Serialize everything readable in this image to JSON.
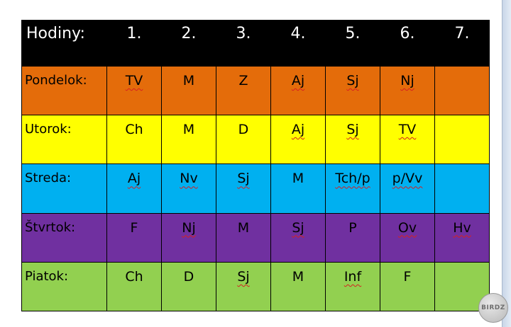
{
  "timetable": {
    "header": {
      "label": "Hodiny:",
      "periods": [
        "1.",
        "2.",
        "3.",
        "4.",
        "5.",
        "6.",
        "7."
      ]
    },
    "days": [
      {
        "name": "Pondelok:",
        "color": "#e46c0a",
        "cells": [
          {
            "text": "TV",
            "spell": true
          },
          {
            "text": "M",
            "spell": false
          },
          {
            "text": "Z",
            "spell": false
          },
          {
            "text": "Aj",
            "spell": true
          },
          {
            "text": "Sj",
            "spell": true
          },
          {
            "text": "Nj",
            "spell": true
          },
          {
            "text": "",
            "spell": false
          }
        ]
      },
      {
        "name": "Utorok:",
        "color": "#ffff00",
        "cells": [
          {
            "text": "Ch",
            "spell": false
          },
          {
            "text": "M",
            "spell": false
          },
          {
            "text": "D",
            "spell": false
          },
          {
            "text": "Aj",
            "spell": true
          },
          {
            "text": "Sj",
            "spell": true
          },
          {
            "text": "TV",
            "spell": true
          },
          {
            "text": "",
            "spell": false
          }
        ]
      },
      {
        "name": "Streda:",
        "color": "#00b0f0",
        "cells": [
          {
            "text": "Aj",
            "spell": true
          },
          {
            "text": "Nv",
            "spell": true
          },
          {
            "text": "Sj",
            "spell": true
          },
          {
            "text": "M",
            "spell": false
          },
          {
            "text": "Tch/p",
            "spell": true
          },
          {
            "text": "p/Vv",
            "spell": true
          },
          {
            "text": "",
            "spell": false
          }
        ]
      },
      {
        "name": "Štvrtok:",
        "color": "#7030a0",
        "cells": [
          {
            "text": "F",
            "spell": false
          },
          {
            "text": "Nj",
            "spell": true
          },
          {
            "text": "M",
            "spell": false
          },
          {
            "text": "Sj",
            "spell": true
          },
          {
            "text": "P",
            "spell": false
          },
          {
            "text": "Ov",
            "spell": true
          },
          {
            "text": "Hv",
            "spell": true
          }
        ]
      },
      {
        "name": "Piatok:",
        "color": "#92d050",
        "cells": [
          {
            "text": "Ch",
            "spell": false
          },
          {
            "text": "D",
            "spell": false
          },
          {
            "text": "Sj",
            "spell": true
          },
          {
            "text": "M",
            "spell": false
          },
          {
            "text": "Inf",
            "spell": true
          },
          {
            "text": "F",
            "spell": false
          },
          {
            "text": "",
            "spell": false
          }
        ]
      }
    ]
  },
  "watermark": {
    "text": "BIRDZ",
    "icon": "birdz-logo-icon"
  }
}
